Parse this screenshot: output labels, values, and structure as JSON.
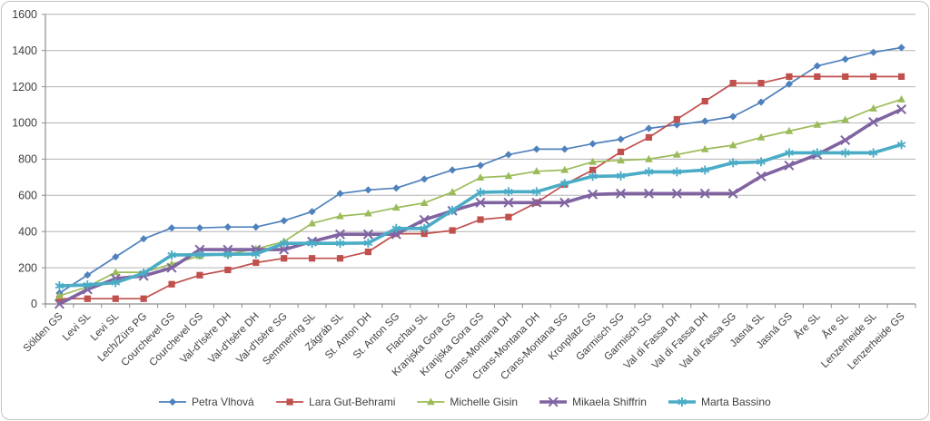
{
  "chart_data": {
    "type": "line",
    "title": "",
    "xlabel": "",
    "ylabel": "",
    "ylim": [
      0,
      1600
    ],
    "ytick_step": 200,
    "yticks": [
      0,
      200,
      400,
      600,
      800,
      1000,
      1200,
      1400,
      1600
    ],
    "grid": true,
    "legend_position": "bottom",
    "categories": [
      "Sölden GS",
      "Levi SL",
      "Levi SL",
      "Lech/Zürs PG",
      "Courchevel GS",
      "Courchevel GS",
      "Val-d'Isère DH",
      "Val-d'Isère DH",
      "Val-d'Isère SG",
      "Semmering SL",
      "Zágráb SL",
      "St. Anton DH",
      "St. Anton SG",
      "Flachau SL",
      "Kranjska Gora GS",
      "Kranjska Gora GS",
      "Crans-Montana DH",
      "Crans-Montana DH",
      "Crans-Montana SG",
      "Kronplatz GS",
      "Garmisch SG",
      "Garmisch SG",
      "Val di Fassa DH",
      "Val di Fassa DH",
      "Val di Fassa SG",
      "Jasná SL",
      "Jasná GS",
      "Åre SL",
      "Åre SL",
      "Lenzerheide SL",
      "Lenzerheide GS"
    ],
    "series": [
      {
        "name": "Petra Vlhová",
        "color": "#4F81BD",
        "marker": "diamond",
        "thick": false,
        "values": [
          60,
          160,
          260,
          360,
          420,
          420,
          425,
          425,
          460,
          510,
          610,
          630,
          640,
          690,
          740,
          765,
          825,
          855,
          855,
          885,
          910,
          970,
          990,
          1010,
          1035,
          1115,
          1215,
          1315,
          1352,
          1390,
          1416
        ]
      },
      {
        "name": "Lara Gut-Behrami",
        "color": "#C0504D",
        "marker": "square",
        "thick": false,
        "values": [
          29,
          29,
          29,
          29,
          109,
          159,
          188,
          228,
          252,
          252,
          252,
          288,
          388,
          388,
          406,
          466,
          480,
          560,
          660,
          740,
          840,
          920,
          1020,
          1120,
          1220,
          1220,
          1256,
          1256,
          1256,
          1256,
          1256
        ]
      },
      {
        "name": "Michelle Gisin",
        "color": "#9BBB59",
        "marker": "triangle",
        "thick": false,
        "values": [
          45,
          95,
          175,
          175,
          220,
          265,
          275,
          304,
          345,
          445,
          485,
          500,
          532,
          558,
          618,
          698,
          707,
          733,
          740,
          785,
          793,
          800,
          825,
          855,
          877,
          920,
          955,
          990,
          1017,
          1080,
          1130
        ]
      },
      {
        "name": "Mikaela Shiffrin",
        "color": "#8064A2",
        "marker": "x",
        "thick": true,
        "values": [
          0,
          80,
          140,
          155,
          200,
          300,
          300,
          300,
          300,
          345,
          385,
          385,
          385,
          465,
          515,
          560,
          560,
          560,
          560,
          605,
          610,
          610,
          610,
          610,
          610,
          705,
          765,
          825,
          905,
          1005,
          1075
        ]
      },
      {
        "name": "Marta Bassino",
        "color": "#4BACC6",
        "marker": "asterisk",
        "thick": true,
        "values": [
          100,
          105,
          118,
          170,
          270,
          272,
          274,
          276,
          335,
          335,
          335,
          337,
          417,
          417,
          517,
          617,
          620,
          620,
          665,
          705,
          708,
          730,
          730,
          740,
          780,
          785,
          835,
          835,
          835,
          835,
          880
        ]
      }
    ],
    "colors": {
      "background": "#ffffff",
      "gridline": "#b3b3b3",
      "axis": "#8e8e8e",
      "tick_text": "#3f3f3f",
      "frame_border": "#c3c3c3"
    }
  }
}
